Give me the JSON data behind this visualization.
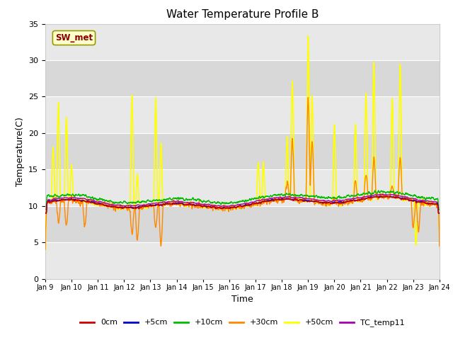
{
  "title": "Water Temperature Profile B",
  "xlabel": "Time",
  "ylabel": "Temperature(C)",
  "ylim": [
    0,
    35
  ],
  "xlim": [
    0,
    15
  ],
  "yticks": [
    0,
    5,
    10,
    15,
    20,
    25,
    30,
    35
  ],
  "xtick_labels": [
    "Jan 9",
    "Jan 10",
    "Jan 11",
    "Jan 12",
    "Jan 13",
    "Jan 14",
    "Jan 15",
    "Jan 16",
    "Jan 17",
    "Jan 18",
    "Jan 19",
    "Jan 20",
    "Jan 21",
    "Jan 22",
    "Jan 23",
    "Jan 24"
  ],
  "legend_entries": [
    "0cm",
    "+5cm",
    "+10cm",
    "+30cm",
    "+50cm",
    "TC_temp11"
  ],
  "legend_colors": [
    "#cc0000",
    "#0000cc",
    "#00bb00",
    "#ff8800",
    "#ffff00",
    "#aa00aa"
  ],
  "line_widths": [
    1.0,
    1.0,
    1.0,
    1.0,
    1.2,
    1.0
  ],
  "sw_met_box_facecolor": "#ffffcc",
  "sw_met_box_edgecolor": "#999900",
  "sw_met_text_color": "#880000",
  "fig_facecolor": "#ffffff",
  "axes_facecolor": "#e8e8e8",
  "band_colors": [
    "#e0e0e0",
    "#d0d0d0"
  ],
  "title_fontsize": 11,
  "tick_fontsize": 8,
  "label_fontsize": 9
}
